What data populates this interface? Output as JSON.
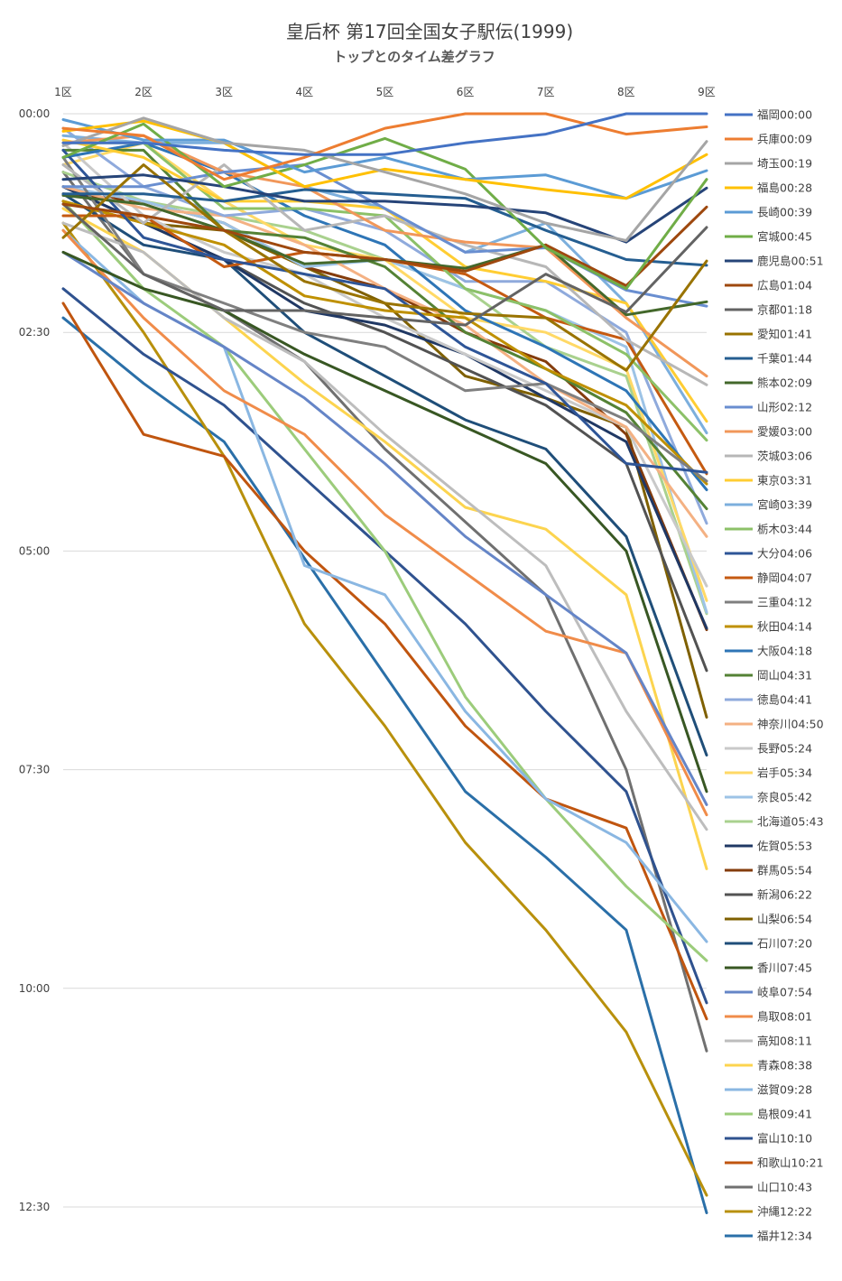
{
  "chart_data": {
    "type": "line",
    "title": "皇后杯 第17回全国女子駅伝(1999)",
    "subtitle": "トップとのタイム差グラフ",
    "categories": [
      "1区",
      "2区",
      "3区",
      "4区",
      "5区",
      "6区",
      "7区",
      "8区",
      "9区"
    ],
    "y_ticks": [
      "00:00",
      "02:30",
      "05:00",
      "07:30",
      "10:00",
      "12:30"
    ],
    "ylim_seconds": [
      0,
      750
    ],
    "y_reversed": true,
    "y_unit": "seconds behind leader (mm:ss)",
    "grid": true,
    "legend_position": "right",
    "series": [
      {
        "name": "福岡00:00",
        "color": "#4472c4",
        "values": [
          20,
          20,
          25,
          28,
          28,
          20,
          14,
          0,
          0
        ]
      },
      {
        "name": "兵庫00:09",
        "color": "#ed7d31",
        "values": [
          10,
          15,
          45,
          30,
          10,
          0,
          0,
          14,
          9
        ]
      },
      {
        "name": "埼玉00:19",
        "color": "#a5a5a5",
        "values": [
          22,
          3,
          20,
          25,
          40,
          55,
          75,
          87,
          19
        ]
      },
      {
        "name": "福島00:28",
        "color": "#ffc000",
        "values": [
          12,
          5,
          20,
          50,
          38,
          45,
          52,
          58,
          28
        ]
      },
      {
        "name": "長崎00:39",
        "color": "#5b9bd5",
        "values": [
          4,
          18,
          18,
          40,
          30,
          45,
          42,
          58,
          39
        ]
      },
      {
        "name": "宮城00:45",
        "color": "#70ad47",
        "values": [
          30,
          7,
          50,
          35,
          17,
          38,
          92,
          120,
          45
        ]
      },
      {
        "name": "鹿児島00:51",
        "color": "#264478",
        "values": [
          45,
          42,
          50,
          60,
          60,
          63,
          68,
          88,
          51
        ]
      },
      {
        "name": "広島01:04",
        "color": "#9e480e",
        "values": [
          62,
          70,
          80,
          95,
          100,
          108,
          90,
          118,
          64
        ]
      },
      {
        "name": "京都01:18",
        "color": "#636363",
        "values": [
          62,
          110,
          135,
          135,
          140,
          145,
          110,
          136,
          78
        ]
      },
      {
        "name": "愛知01:41",
        "color": "#997300",
        "values": [
          85,
          35,
          80,
          115,
          130,
          137,
          140,
          176,
          101
        ]
      },
      {
        "name": "千葉01:44",
        "color": "#255e91",
        "values": [
          55,
          55,
          60,
          52,
          55,
          58,
          80,
          100,
          104
        ]
      },
      {
        "name": "熊本02:09",
        "color": "#43682b",
        "values": [
          56,
          62,
          80,
          103,
          100,
          106,
          90,
          138,
          129
        ]
      },
      {
        "name": "山形02:12",
        "color": "#698ed0",
        "values": [
          50,
          50,
          40,
          35,
          65,
          95,
          92,
          121,
          132
        ]
      },
      {
        "name": "愛媛03:00",
        "color": "#f1975a",
        "values": [
          20,
          15,
          40,
          50,
          80,
          88,
          92,
          140,
          180
        ]
      },
      {
        "name": "茨城03:06",
        "color": "#b7b7b7",
        "values": [
          35,
          75,
          35,
          80,
          70,
          90,
          105,
          155,
          186
        ]
      },
      {
        "name": "東京03:31",
        "color": "#ffcd33",
        "values": [
          18,
          30,
          60,
          60,
          65,
          105,
          115,
          130,
          211
        ]
      },
      {
        "name": "宮崎03:39",
        "color": "#7cafdd",
        "values": [
          15,
          20,
          20,
          50,
          65,
          95,
          75,
          130,
          219
        ]
      },
      {
        "name": "栃木03:44",
        "color": "#8cc168",
        "values": [
          20,
          20,
          65,
          65,
          70,
          120,
          135,
          165,
          224
        ]
      },
      {
        "name": "大分04:06",
        "color": "#2e5597",
        "values": [
          25,
          85,
          100,
          110,
          120,
          160,
          185,
          240,
          246
        ]
      },
      {
        "name": "静岡04:07",
        "color": "#c55a11",
        "values": [
          70,
          70,
          105,
          95,
          100,
          110,
          140,
          155,
          247
        ]
      },
      {
        "name": "三重04:12",
        "color": "#7f7f7f",
        "values": [
          30,
          110,
          130,
          150,
          160,
          190,
          185,
          210,
          252
        ]
      },
      {
        "name": "秋田04:14",
        "color": "#bf9000",
        "values": [
          60,
          75,
          90,
          125,
          135,
          140,
          175,
          200,
          254
        ]
      },
      {
        "name": "大阪04:18",
        "color": "#2e75b6",
        "values": [
          30,
          20,
          40,
          70,
          90,
          135,
          160,
          190,
          258
        ]
      },
      {
        "name": "岡山04:31",
        "color": "#548235",
        "values": [
          25,
          25,
          80,
          85,
          105,
          150,
          175,
          205,
          271
        ]
      },
      {
        "name": "徳島04:41",
        "color": "#8faadc",
        "values": [
          10,
          50,
          70,
          65,
          80,
          115,
          115,
          150,
          281
        ]
      },
      {
        "name": "神奈川04:50",
        "color": "#f4b183",
        "values": [
          50,
          65,
          70,
          90,
          120,
          145,
          185,
          215,
          290
        ]
      },
      {
        "name": "長野05:24",
        "color": "#c9c9c9",
        "values": [
          20,
          70,
          95,
          110,
          140,
          165,
          190,
          215,
          324
        ]
      },
      {
        "name": "岩手05:34",
        "color": "#ffd966",
        "values": [
          35,
          20,
          60,
          90,
          100,
          140,
          150,
          175,
          334
        ]
      },
      {
        "name": "奈良05:42",
        "color": "#9dc3e6",
        "values": [
          50,
          60,
          75,
          105,
          100,
          120,
          135,
          160,
          342
        ]
      },
      {
        "name": "北海道05:43",
        "color": "#a9d18e",
        "values": [
          40,
          60,
          70,
          80,
          100,
          120,
          160,
          180,
          343
        ]
      },
      {
        "name": "佐賀05:53",
        "color": "#203864",
        "values": [
          50,
          75,
          100,
          135,
          145,
          165,
          195,
          225,
          353
        ]
      },
      {
        "name": "群馬05:54",
        "color": "#843c0c",
        "values": [
          55,
          60,
          75,
          105,
          120,
          150,
          170,
          220,
          354
        ]
      },
      {
        "name": "新潟06:22",
        "color": "#525252",
        "values": [
          50,
          75,
          100,
          130,
          150,
          175,
          200,
          240,
          382
        ]
      },
      {
        "name": "山梨06:54",
        "color": "#7f6000",
        "values": [
          60,
          75,
          80,
          105,
          130,
          180,
          195,
          215,
          414
        ]
      },
      {
        "name": "石川07:20",
        "color": "#1f4e79",
        "values": [
          55,
          90,
          100,
          150,
          180,
          210,
          230,
          290,
          440
        ]
      },
      {
        "name": "香川07:45",
        "color": "#385723",
        "values": [
          95,
          120,
          135,
          165,
          190,
          215,
          240,
          300,
          465
        ]
      },
      {
        "name": "岐阜07:54",
        "color": "#6585c7",
        "values": [
          95,
          130,
          160,
          195,
          240,
          290,
          330,
          370,
          474
        ]
      },
      {
        "name": "鳥取08:01",
        "color": "#f08c4a",
        "values": [
          80,
          140,
          190,
          220,
          275,
          315,
          355,
          370,
          481
        ]
      },
      {
        "name": "高知08:11",
        "color": "#bdbdbd",
        "values": [
          75,
          95,
          140,
          170,
          220,
          265,
          310,
          410,
          491
        ]
      },
      {
        "name": "青森08:38",
        "color": "#fcd44f",
        "values": [
          65,
          95,
          140,
          185,
          225,
          270,
          285,
          330,
          518
        ]
      },
      {
        "name": "滋賀09:28",
        "color": "#8ab7e2",
        "values": [
          80,
          130,
          160,
          310,
          330,
          410,
          470,
          500,
          568
        ]
      },
      {
        "name": "島根09:41",
        "color": "#9ccc7b",
        "values": [
          60,
          120,
          160,
          230,
          300,
          400,
          470,
          530,
          581
        ]
      },
      {
        "name": "富山10:10",
        "color": "#2f528f",
        "values": [
          120,
          165,
          200,
          250,
          300,
          350,
          410,
          465,
          610
        ]
      },
      {
        "name": "和歌山10:21",
        "color": "#c0550f",
        "values": [
          130,
          220,
          235,
          300,
          350,
          420,
          470,
          490,
          621
        ]
      },
      {
        "name": "山口10:43",
        "color": "#707070",
        "values": [
          40,
          110,
          135,
          170,
          230,
          280,
          330,
          450,
          643
        ]
      },
      {
        "name": "沖縄12:22",
        "color": "#b8900c",
        "values": [
          75,
          150,
          235,
          350,
          420,
          500,
          560,
          630,
          742
        ]
      },
      {
        "name": "福井12:34",
        "color": "#2a6fa8",
        "values": [
          140,
          185,
          225,
          305,
          385,
          465,
          510,
          560,
          754
        ]
      }
    ]
  }
}
